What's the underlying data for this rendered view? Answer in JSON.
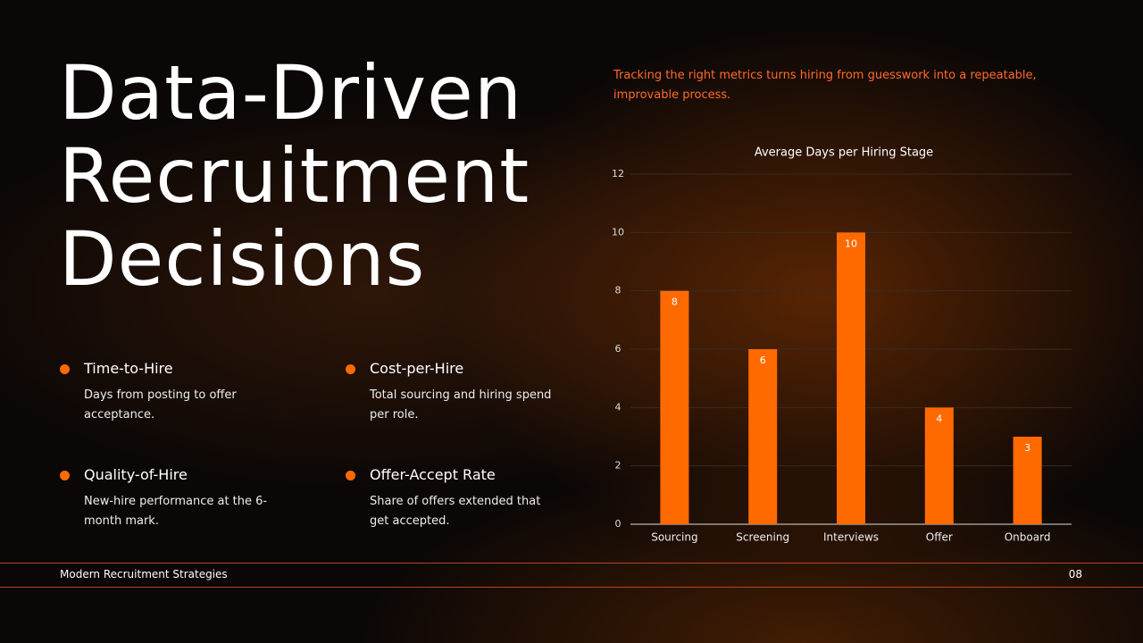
{
  "title_lines": [
    "Data-Driven",
    "Recruitment",
    "Decisions"
  ],
  "subtitle": "Tracking the right metrics turns hiring from guesswork into a repeatable, improvable process.",
  "metrics": [
    {
      "title": "Time-to-Hire",
      "description": "Days from posting to offer acceptance."
    },
    {
      "title": "Cost-per-Hire",
      "description": "Total sourcing and hiring spend per role."
    },
    {
      "title": "Quality-of-Hire",
      "description": "New-hire performance at the 6-month mark."
    },
    {
      "title": "Offer-Accept Rate",
      "description": "Share of offers extended that get accepted."
    }
  ],
  "footer": {
    "left": "Modern Recruitment Strategies",
    "page": "08"
  },
  "chart_data": {
    "type": "bar",
    "title": "Average Days per Hiring Stage",
    "categories": [
      "Sourcing",
      "Screening",
      "Interviews",
      "Offer",
      "Onboard"
    ],
    "values": [
      8,
      6,
      10,
      4,
      3
    ],
    "color": "#ff6a00",
    "ylim": [
      0,
      12
    ],
    "yticks": [
      0,
      2,
      4,
      6,
      8,
      10,
      12
    ],
    "grid": true
  }
}
